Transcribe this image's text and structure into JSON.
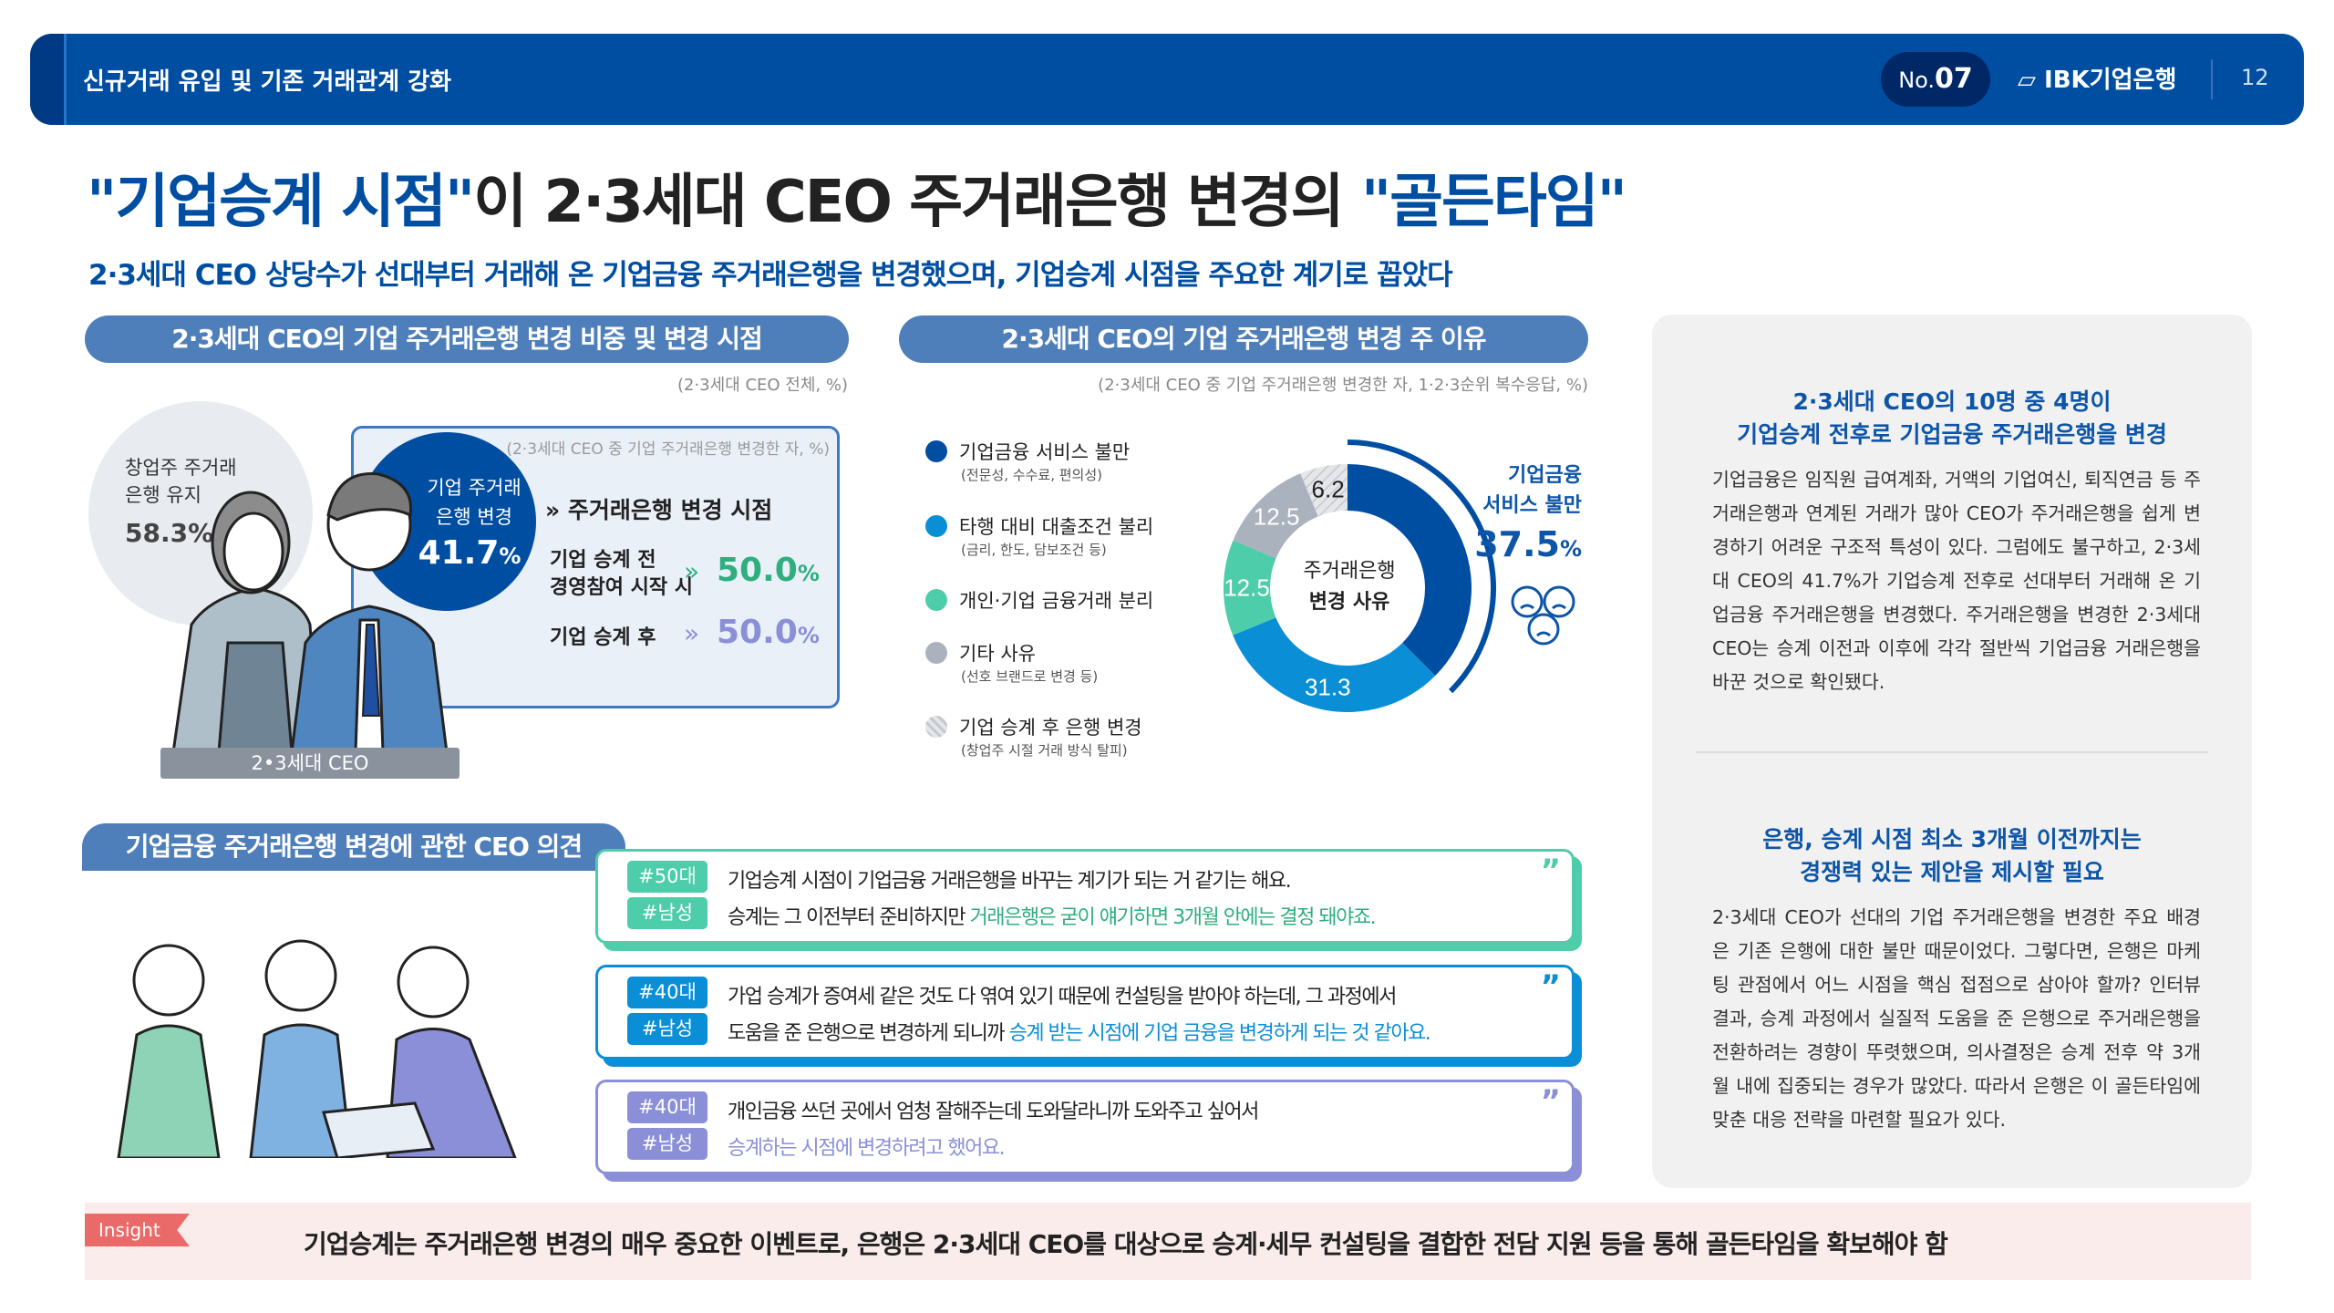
{
  "header": {
    "breadcrumb": "신규거래 유입 및 기존 거래관계 강화",
    "issue_prefix": "No.",
    "issue_number": "07",
    "logo": "IBK기업은행",
    "page": "12"
  },
  "title": {
    "part1": "\"기업승계 시점\"",
    "part2": "이 2·3세대 CEO 주거래은행 변경의 ",
    "part3": "\"골든타임\""
  },
  "subtitle": "2·3세대 CEO 상당수가 선대부터 거래해 온 기업금융 주거래은행을 변경했으며, 기업승계 시점을 주요한 계기로 꼽았다",
  "section1": {
    "heading": "2·3세대 CEO의 기업 주거래은행 변경 비중 및 변경 시점",
    "note": "(2·3세대 CEO 전체, %)",
    "keep_label_1": "창업주 주거래",
    "keep_label_2": "은행 유지",
    "keep_value": "58.3%",
    "change_label_1": "기업 주거래",
    "change_label_2": "은행 변경",
    "change_value": "41.7",
    "change_unit": "%",
    "box_note": "(2·3세대 CEO 중 기업 주거래은행 변경한 자, %)",
    "timing_heading": "주거래은행 변경 시점",
    "timing": [
      {
        "label1": "기업 승계 전",
        "label2": "경영참여 시작 시",
        "value": "50.0",
        "unit": "%",
        "color": "#2fae7e"
      },
      {
        "label1": "기업 승계 후",
        "label2": "",
        "value": "50.0",
        "unit": "%",
        "color": "#8a8fd8"
      }
    ],
    "illustration_label": "2•3세대 CEO"
  },
  "section2": {
    "heading": "2·3세대 CEO의 기업 주거래은행 변경 주 이유",
    "note": "(2·3세대 CEO 중 기업 주거래은행 변경한 자, 1·2·3순위 복수응답, %)",
    "center_1": "주거래은행",
    "center_2": "변경 사유",
    "callout_1": "기업금융",
    "callout_2": "서비스 불만",
    "callout_value": "37.5",
    "callout_unit": "%"
  },
  "chart_data": {
    "type": "pie",
    "title": "주거래은행 변경 사유",
    "categories": [
      "기업금융 서비스 불만",
      "타행 대비 대출조건 불리",
      "개인·기업 금융거래 분리",
      "기타 사유",
      "기업 승계 후 은행 변경"
    ],
    "subtitles": [
      "(전문성, 수수료, 편의성)",
      "(금리, 한도, 담보조건 등)",
      "",
      "(선호 브랜드로 변경 등)",
      "(창업주 시절 거래 방식 탈피)"
    ],
    "values": [
      37.5,
      31.3,
      12.5,
      12.5,
      6.2
    ],
    "labels": [
      "",
      "31.3",
      "12.5",
      "12.5",
      "6.2"
    ],
    "colors": [
      "#004ea2",
      "#0a8fd6",
      "#4ecdaa",
      "#aab2bd",
      "hatch"
    ]
  },
  "opinions": {
    "heading": "기업금융 주거래은행 변경에 관한 CEO 의견",
    "items": [
      {
        "age": "#50대",
        "gender": "#남성",
        "line1": "기업승계 시점이 기업금융 거래은행을 바꾸는 계기가 되는 거 같기는 해요.",
        "line2_plain": "승계는 그 이전부터 준비하지만 ",
        "line2_highlight": "거래은행은 굳이 얘기하면 3개월 안에는 결정 돼야죠.",
        "color": "#4ecdaa",
        "text_color": "#2fae7e"
      },
      {
        "age": "#40대",
        "gender": "#남성",
        "line1": "가업 승계가 증여세 같은 것도 다 엮여 있기 때문에 컨설팅을 받아야 하는데, 그 과정에서",
        "line2_plain": "도움을 준 은행으로 변경하게 되니까 ",
        "line2_highlight": "승계 받는 시점에 기업 금융을 변경하게 되는 것 같아요.",
        "color": "#0a8fd6",
        "text_color": "#0a8fd6"
      },
      {
        "age": "#40대",
        "gender": "#남성",
        "line1": "개인금융 쓰던 곳에서 엄청 잘해주는데 도와달라니까 도와주고 싶어서",
        "line2_plain": "",
        "line2_highlight": "승계하는 시점에 변경하려고 했어요.",
        "color": "#8a8fd8",
        "text_color": "#8a8fd8"
      }
    ],
    "quote_mark": "”"
  },
  "panel": {
    "h1_1": "2·3세대 CEO의 10명 중 4명이",
    "h1_2": "기업승계 전후로 기업금융 주거래은행을 변경",
    "p1": "기업금융은 임직원 급여계좌, 거액의 기업여신, 퇴직연금 등 주거래은행과 연계된 거래가 많아 CEO가 주거래은행을 쉽게 변경하기 어려운 구조적 특성이 있다. 그럼에도 불구하고, 2·3세대 CEO의 41.7%가 기업승계 전후로 선대부터 거래해 온 기업금융 주거래은행을 변경했다. 주거래은행을 변경한 2·3세대 CEO는 승계 이전과 이후에 각각 절반씩 기업금융 거래은행을 바꾼 것으로 확인됐다.",
    "h2_1": "은행, 승계 시점 최소 3개월 이전까지는",
    "h2_2": "경쟁력 있는 제안을 제시할 필요",
    "p2": "2·3세대 CEO가 선대의 기업 주거래은행을 변경한 주요 배경은 기존 은행에 대한 불만 때문이었다. 그렇다면, 은행은 마케팅 관점에서 어느 시점을 핵심 접점으로 삼아야 할까? 인터뷰 결과, 승계 과정에서 실질적 도움을 준 은행으로 주거래은행을 전환하려는 경향이 뚜렷했으며, 의사결정은 승계 전후 약 3개월 내에 집중되는 경우가 많았다. 따라서 은행은 이 골든타임에 맞춘 대응 전략을 마련할 필요가 있다."
  },
  "insight": {
    "tag": "Insight",
    "text": "기업승계는 주거래은행 변경의 매우 중요한 이벤트로, 은행은 2·3세대 CEO를 대상으로 승계·세무 컨설팅을 결합한 전담 지원 등을 통해 골든타임을 확보해야 함"
  }
}
